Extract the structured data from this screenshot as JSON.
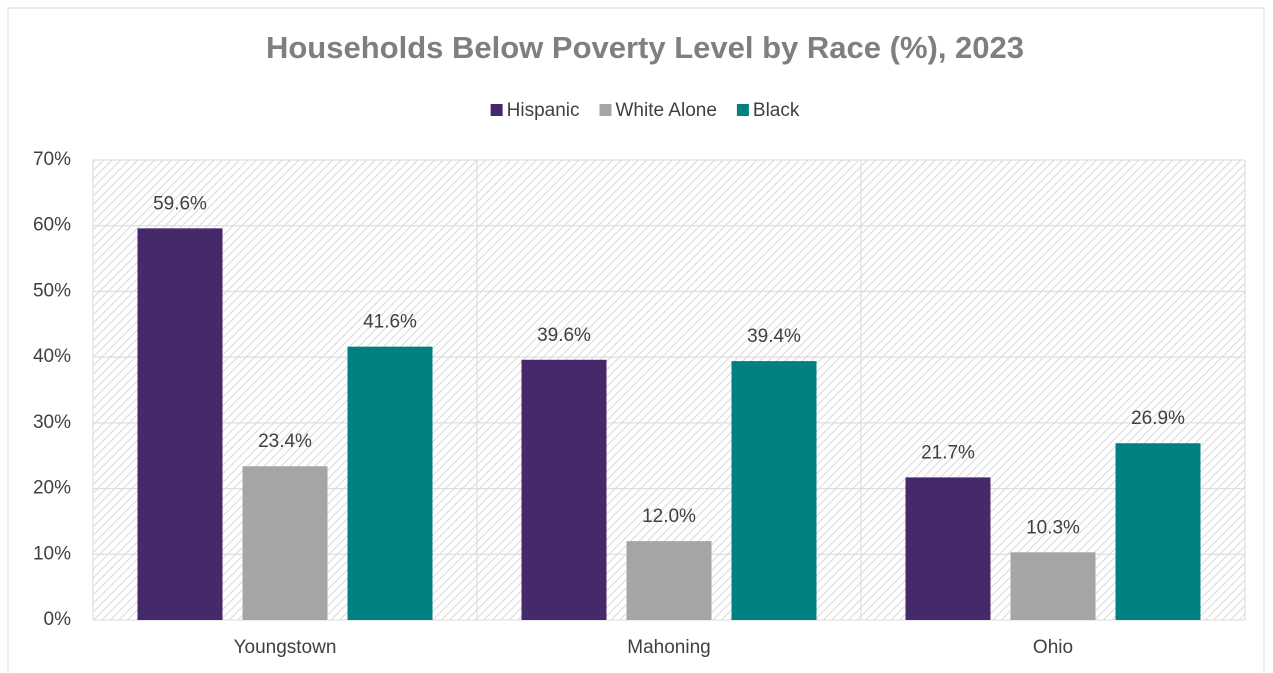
{
  "chart_data": {
    "type": "bar",
    "title": "Households Below Poverty Level by Race (%), 2023",
    "categories": [
      "Youngstown",
      "Mahoning",
      "Ohio"
    ],
    "series": [
      {
        "name": "Hispanic",
        "color": "#45296b",
        "values": [
          59.6,
          39.6,
          21.7
        ],
        "value_labels": [
          "59.6%",
          "39.6%",
          "21.7%"
        ]
      },
      {
        "name": "White Alone",
        "color": "#a5a5a5",
        "values": [
          23.4,
          12.0,
          10.3
        ],
        "value_labels": [
          "23.4%",
          "12.0%",
          "10.3%"
        ]
      },
      {
        "name": "Black",
        "color": "#008080",
        "values": [
          41.6,
          39.4,
          26.9
        ],
        "value_labels": [
          "41.6%",
          "39.4%",
          "26.9%"
        ]
      }
    ],
    "ylim": [
      0,
      70
    ],
    "yticks": [
      {
        "value": 0,
        "label": "0%"
      },
      {
        "value": 10,
        "label": "10%"
      },
      {
        "value": 20,
        "label": "20%"
      },
      {
        "value": 30,
        "label": "30%"
      },
      {
        "value": 40,
        "label": "40%"
      },
      {
        "value": 50,
        "label": "50%"
      },
      {
        "value": 60,
        "label": "60%"
      },
      {
        "value": 70,
        "label": "70%"
      }
    ],
    "grid": true,
    "legend": "top"
  }
}
